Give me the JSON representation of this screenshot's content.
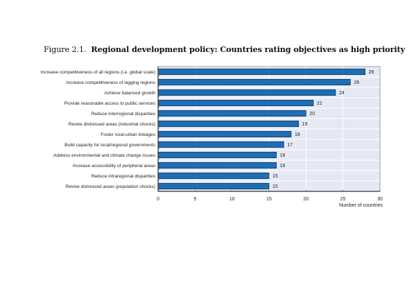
{
  "figure": {
    "number": "Figure 2.1.",
    "title": "Regional development policy: Countries rating objectives as high priority"
  },
  "chart_data": {
    "type": "bar",
    "orientation": "horizontal",
    "title": "Figure 2.1. Regional development policy: Countries rating objectives as high priority",
    "categories": [
      "Increase competitiveness of all regions (i.e. global scale)",
      "Increase competitiveness of lagging regions",
      "Achieve balanced growth",
      "Provide reasonable access to public services",
      "Reduce interregional disparities",
      "Revive distressed areas (industrial shocks)",
      "Foster rural-urban linkages",
      "Build capacity for local/regional governments",
      "Address environmental and climate change issues",
      "Increase accessibility of peripheral areas",
      "Reduce intraregional disparities",
      "Revive distressed areas (population shocks)"
    ],
    "values": [
      28,
      26,
      24,
      21,
      20,
      19,
      18,
      17,
      16,
      16,
      15,
      15
    ],
    "xlabel": "Number of countries",
    "ylabel": "",
    "xlim": [
      0,
      30
    ],
    "xticks": [
      0,
      5,
      10,
      15,
      20,
      25,
      30
    ],
    "data_labels": true,
    "grid": true,
    "colors": {
      "bar": "#1f6eb4",
      "bar_border": "#0d2f55",
      "plot_bg": "#e5e9f4",
      "grid": "#ffffff",
      "axis": "#333333"
    }
  }
}
